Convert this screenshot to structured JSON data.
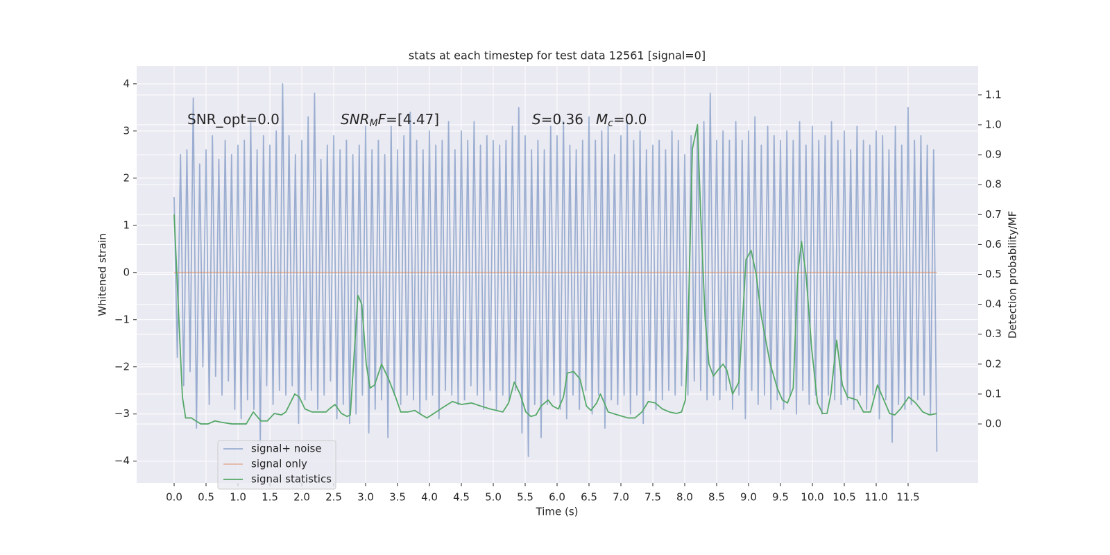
{
  "chart_data": {
    "type": "line",
    "title": "stats at each timestep for test data 12561 [signal=0]",
    "xlabel": "Time (s)",
    "ylabel": "Whitened strain",
    "y2label": "Detection probability/MF",
    "xlim": [
      -0.587,
      12.598
    ],
    "ylim": [
      -4.46,
      4.38
    ],
    "y2lim": [
      -0.197,
      1.197
    ],
    "xticks": [
      {
        "value": 0,
        "label": "0.0"
      },
      0.5,
      {
        "value": 1,
        "label": "1.0"
      },
      1.5,
      {
        "value": 2,
        "label": "2.0"
      },
      2.5,
      {
        "value": 3,
        "label": "3.0"
      },
      3.5,
      {
        "value": 4,
        "label": "4.0"
      },
      4.5,
      {
        "value": 5,
        "label": "5.0"
      },
      5.5,
      {
        "value": 6,
        "label": "6.0"
      },
      6.5,
      {
        "value": 7,
        "label": "7.0"
      },
      7.5,
      {
        "value": 8,
        "label": "8.0"
      },
      8.5,
      {
        "value": 9,
        "label": "9.0"
      },
      9.5,
      {
        "value": 10,
        "label": "10.0"
      },
      10.5,
      {
        "value": 11,
        "label": "11.0"
      },
      11.5
    ],
    "yticks": [
      {
        "value": -4,
        "label": "−4"
      },
      {
        "value": -3,
        "label": "−3"
      },
      {
        "value": -2,
        "label": "−2"
      },
      {
        "value": -1,
        "label": "−1"
      },
      0,
      1,
      2,
      3,
      4
    ],
    "y2ticks": [
      {
        "value": 0,
        "label": "0.0"
      },
      0.1,
      0.2,
      0.3,
      0.4,
      0.5,
      0.6,
      0.7,
      0.8,
      0.9,
      {
        "value": 1,
        "label": "1.0"
      },
      1.1
    ],
    "grid": true,
    "annotations": [
      [
        {
          "text": "SNR_opt=0.0"
        }
      ],
      [
        {
          "text": "SNR",
          "style": "italic"
        },
        {
          "text": "M",
          "style": "italic-sub"
        },
        {
          "text": "F",
          "style": "italic"
        },
        {
          "text": "=[4.47]"
        }
      ],
      [
        {
          "text": "S",
          "style": "italic"
        },
        {
          "text": "=0.36"
        }
      ],
      [
        {
          "text": "M",
          "style": "italic"
        },
        {
          "text": "c",
          "style": "italic-sub"
        },
        {
          "text": "=0.0"
        }
      ]
    ],
    "series": [
      {
        "name": "signal+ noise",
        "color": "#4c72b0",
        "alpha": 0.5,
        "x": [
          0,
          0.05,
          0.1,
          0.15,
          0.2,
          0.25,
          0.3,
          0.35,
          0.4,
          0.45,
          0.5,
          0.55,
          0.6,
          0.65,
          0.7,
          0.75,
          0.8,
          0.85,
          0.9,
          0.95,
          1,
          1.05,
          1.1,
          1.15,
          1.2,
          1.25,
          1.3,
          1.35,
          1.4,
          1.45,
          1.5,
          1.55,
          1.6,
          1.65,
          1.7,
          1.75,
          1.8,
          1.85,
          1.9,
          1.95,
          2,
          2.05,
          2.1,
          2.15,
          2.2,
          2.25,
          2.3,
          2.35,
          2.4,
          2.45,
          2.5,
          2.55,
          2.6,
          2.65,
          2.7,
          2.75,
          2.8,
          2.85,
          2.9,
          2.95,
          3,
          3.05,
          3.1,
          3.15,
          3.2,
          3.25,
          3.3,
          3.35,
          3.4,
          3.45,
          3.5,
          3.55,
          3.6,
          3.65,
          3.7,
          3.75,
          3.8,
          3.85,
          3.9,
          3.95,
          4,
          4.05,
          4.1,
          4.15,
          4.2,
          4.25,
          4.3,
          4.35,
          4.4,
          4.45,
          4.5,
          4.55,
          4.6,
          4.65,
          4.7,
          4.75,
          4.8,
          4.85,
          4.9,
          4.95,
          5,
          5.05,
          5.1,
          5.15,
          5.2,
          5.25,
          5.3,
          5.35,
          5.4,
          5.45,
          5.5,
          5.55,
          5.6,
          5.65,
          5.7,
          5.75,
          5.8,
          5.85,
          5.9,
          5.95,
          6,
          6.05,
          6.1,
          6.15,
          6.2,
          6.25,
          6.3,
          6.35,
          6.4,
          6.45,
          6.5,
          6.55,
          6.6,
          6.65,
          6.7,
          6.75,
          6.8,
          6.85,
          6.9,
          6.95,
          7,
          7.05,
          7.1,
          7.15,
          7.2,
          7.25,
          7.3,
          7.35,
          7.4,
          7.45,
          7.5,
          7.55,
          7.6,
          7.65,
          7.7,
          7.75,
          7.8,
          7.85,
          7.9,
          7.95,
          8,
          8.05,
          8.1,
          8.15,
          8.2,
          8.25,
          8.3,
          8.35,
          8.4,
          8.45,
          8.5,
          8.55,
          8.6,
          8.65,
          8.7,
          8.75,
          8.8,
          8.85,
          8.9,
          8.95,
          9,
          9.05,
          9.1,
          9.15,
          9.2,
          9.25,
          9.3,
          9.35,
          9.4,
          9.45,
          9.5,
          9.55,
          9.6,
          9.65,
          9.7,
          9.75,
          9.8,
          9.85,
          9.9,
          9.95,
          10,
          10.05,
          10.1,
          10.15,
          10.2,
          10.25,
          10.3,
          10.35,
          10.4,
          10.45,
          10.5,
          10.55,
          10.6,
          10.65,
          10.7,
          10.75,
          10.8,
          10.85,
          10.9,
          10.95,
          11,
          11.05,
          11.1,
          11.15,
          11.2,
          11.25,
          11.3,
          11.35,
          11.4,
          11.45,
          11.5,
          11.55,
          11.6,
          11.65,
          11.7,
          11.75,
          11.8,
          11.85,
          11.9,
          11.95
        ],
        "values": [
          1.6,
          -1.8,
          2.5,
          -2.4,
          2.6,
          -2.1,
          3.7,
          -3.3,
          2.3,
          -2.0,
          2.6,
          -2.8,
          2.9,
          -2.2,
          2.4,
          -2.6,
          2.8,
          -2.3,
          2.5,
          -2.9,
          2.7,
          -3.1,
          2.8,
          -2.7,
          3.2,
          -2.9,
          2.6,
          -3.6,
          2.9,
          -2.4,
          2.7,
          -2.8,
          3.0,
          -2.5,
          4.0,
          -2.6,
          2.9,
          -2.4,
          2.5,
          -3.2,
          2.8,
          -2.7,
          3.3,
          -2.5,
          3.8,
          -2.9,
          2.4,
          -2.6,
          2.7,
          -2.3,
          2.9,
          -3.1,
          2.6,
          -2.8,
          2.8,
          -3.2,
          2.5,
          -3.0,
          2.7,
          -2.6,
          3.1,
          -3.4,
          2.6,
          -2.9,
          2.8,
          -2.7,
          2.5,
          -3.5,
          3.1,
          -2.6,
          2.6,
          -2.8,
          2.9,
          -2.6,
          3.4,
          -2.7,
          2.8,
          -3.0,
          2.6,
          -2.7,
          3.0,
          -2.6,
          2.7,
          -3.1,
          2.8,
          -2.5,
          3.2,
          -2.6,
          2.6,
          -2.8,
          3.0,
          -2.7,
          2.8,
          -2.4,
          3.2,
          -2.6,
          2.7,
          -2.9,
          2.9,
          -2.5,
          2.8,
          -2.9,
          2.7,
          -2.6,
          2.8,
          -2.7,
          3.1,
          -2.5,
          3.5,
          -3.4,
          2.9,
          -3.9,
          2.6,
          -2.8,
          2.8,
          -3.5,
          2.6,
          -2.8,
          3.1,
          -2.6,
          2.9,
          -2.9,
          3.2,
          -3.1,
          2.7,
          -2.6,
          2.6,
          -2.9,
          2.8,
          -2.5,
          3.3,
          -3.0,
          2.8,
          -2.6,
          3.0,
          -3.3,
          3.1,
          -2.7,
          2.5,
          -2.8,
          2.9,
          -2.6,
          3.2,
          -3.0,
          2.8,
          -2.6,
          3.0,
          -3.2,
          2.6,
          -2.5,
          2.7,
          -2.9,
          2.8,
          -2.7,
          2.6,
          -2.5,
          3.0,
          -2.6,
          2.8,
          -2.4,
          2.5,
          -2.6,
          2.9,
          -2.3,
          3.1,
          -2.5,
          3.2,
          -2.7,
          3.8,
          -2.6,
          2.8,
          -2.7,
          3.0,
          -2.5,
          2.8,
          -2.9,
          3.2,
          -2.6,
          2.8,
          -3.1,
          3.0,
          -2.5,
          3.3,
          -2.8,
          2.7,
          -2.6,
          3.1,
          -2.9,
          2.9,
          -2.7,
          2.8,
          -2.9,
          3.0,
          -2.6,
          2.8,
          -3.0,
          3.2,
          -2.5,
          2.7,
          -2.8,
          3.1,
          -2.6,
          2.8,
          -3.0,
          2.9,
          -2.6,
          3.2,
          -2.7,
          2.8,
          -2.8,
          3.0,
          -2.7,
          2.6,
          -2.9,
          3.1,
          -2.6,
          2.8,
          -2.9,
          2.7,
          -2.6,
          3.0,
          -3.1,
          2.9,
          -2.7,
          2.6,
          -3.6,
          3.1,
          -2.8,
          2.7,
          -2.9,
          3.5,
          -2.8,
          2.8,
          -2.7,
          2.9,
          -2.6,
          2.7,
          -3.0,
          2.6,
          -3.8
        ]
      },
      {
        "name": "signal only",
        "color": "#dd8452",
        "alpha": 0.5,
        "x": [
          0,
          11.95
        ],
        "values": [
          0,
          0
        ]
      },
      {
        "name": "signal statistics",
        "color": "#55a868",
        "alpha": 1,
        "axis": "y2",
        "x": [
          0,
          0.13,
          0.18,
          0.27,
          0.34,
          0.42,
          0.53,
          0.64,
          0.75,
          0.91,
          1.02,
          1.13,
          1.24,
          1.36,
          1.46,
          1.57,
          1.68,
          1.75,
          1.89,
          1.96,
          2.05,
          2.16,
          2.27,
          2.38,
          2.43,
          2.52,
          2.62,
          2.71,
          2.76,
          2.88,
          2.94,
          3.01,
          3.07,
          3.14,
          3.25,
          3.36,
          3.47,
          3.55,
          3.66,
          3.77,
          3.88,
          3.96,
          4.07,
          4.21,
          4.36,
          4.5,
          4.66,
          4.8,
          4.95,
          5.05,
          5.15,
          5.24,
          5.33,
          5.42,
          5.51,
          5.59,
          5.67,
          5.75,
          5.86,
          5.93,
          6.02,
          6.1,
          6.16,
          6.26,
          6.36,
          6.46,
          6.53,
          6.62,
          6.68,
          6.8,
          6.95,
          7.11,
          7.22,
          7.33,
          7.43,
          7.54,
          7.65,
          7.76,
          7.87,
          7.95,
          8.01,
          8.05,
          8.12,
          8.2,
          8.25,
          8.32,
          8.38,
          8.45,
          8.52,
          8.6,
          8.66,
          8.75,
          8.85,
          8.96,
          9.04,
          9.12,
          9.2,
          9.34,
          9.45,
          9.53,
          9.61,
          9.7,
          9.77,
          9.83,
          9.9,
          9.99,
          10.08,
          10.16,
          10.23,
          10.29,
          10.38,
          10.47,
          10.55,
          10.7,
          10.8,
          10.91,
          11.02,
          11.12,
          11.21,
          11.29,
          11.38,
          11.51,
          11.62,
          11.73,
          11.84,
          11.95
        ],
        "values": [
          0.7,
          0.09,
          0.02,
          0.02,
          0.01,
          0,
          0,
          0.01,
          0.005,
          0,
          0,
          0,
          0.04,
          0.01,
          0.01,
          0.035,
          0.03,
          0.04,
          0.1,
          0.09,
          0.05,
          0.04,
          0.04,
          0.04,
          0.05,
          0.065,
          0.035,
          0.025,
          0.03,
          0.43,
          0.4,
          0.2,
          0.12,
          0.13,
          0.2,
          0.15,
          0.09,
          0.04,
          0.04,
          0.045,
          0.03,
          0.02,
          0.035,
          0.055,
          0.075,
          0.065,
          0.07,
          0.06,
          0.05,
          0.045,
          0.04,
          0.07,
          0.14,
          0.1,
          0.04,
          0.025,
          0.03,
          0.06,
          0.08,
          0.06,
          0.05,
          0.09,
          0.17,
          0.175,
          0.15,
          0.06,
          0.045,
          0.07,
          0.1,
          0.04,
          0.03,
          0.02,
          0.02,
          0.04,
          0.075,
          0.07,
          0.05,
          0.04,
          0.035,
          0.04,
          0.08,
          0.3,
          0.92,
          1.0,
          0.7,
          0.35,
          0.2,
          0.16,
          0.18,
          0.2,
          0.18,
          0.1,
          0.14,
          0.55,
          0.58,
          0.5,
          0.36,
          0.2,
          0.12,
          0.08,
          0.07,
          0.12,
          0.5,
          0.61,
          0.5,
          0.25,
          0.07,
          0.035,
          0.035,
          0.1,
          0.28,
          0.13,
          0.09,
          0.08,
          0.04,
          0.04,
          0.13,
          0.08,
          0.035,
          0.03,
          0.05,
          0.09,
          0.07,
          0.04,
          0.03,
          0.035
        ]
      }
    ]
  }
}
